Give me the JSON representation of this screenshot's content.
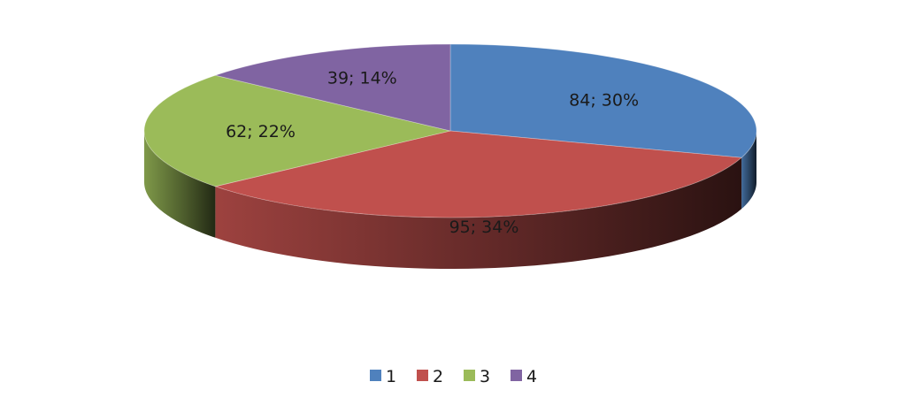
{
  "chart_data": {
    "type": "pie",
    "style": "3d",
    "categories": [
      "1",
      "2",
      "3",
      "4"
    ],
    "values": [
      84,
      95,
      62,
      39
    ],
    "percent_labels": [
      "30%",
      "34%",
      "22%",
      "14%"
    ],
    "data_labels": [
      "84; 30%",
      "95; 34%",
      "62; 22%",
      "39; 14%"
    ],
    "colors": [
      "#4f81bd",
      "#c0504d",
      "#9bbb59",
      "#8064a2"
    ],
    "start_angle_deg": 0,
    "direction": "clockwise",
    "legend": {
      "position": "bottom",
      "entries": [
        "1",
        "2",
        "3",
        "4"
      ]
    }
  }
}
